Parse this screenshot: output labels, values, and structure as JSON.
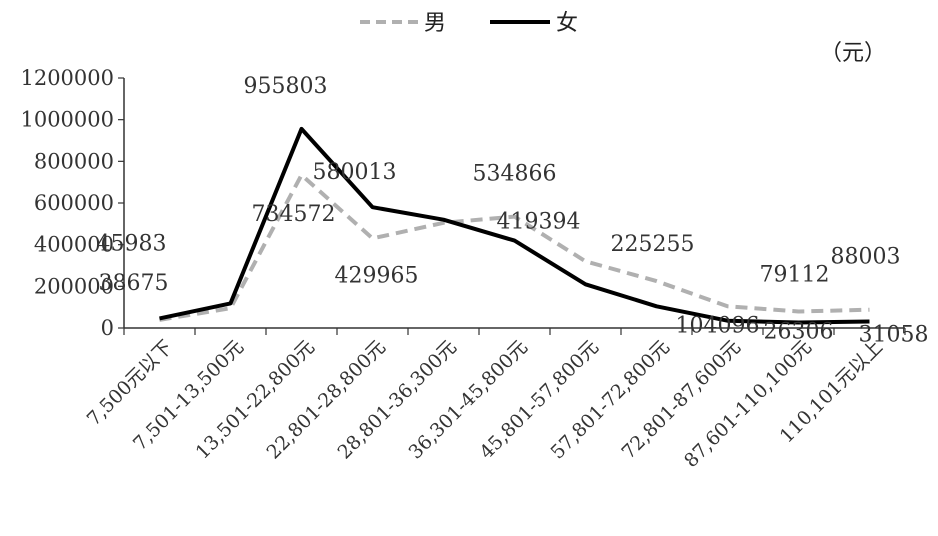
{
  "chart_data": {
    "type": "line",
    "unit": "（元）",
    "categories": [
      "7,500元以下",
      "7,501-13,500元",
      "13,501-22,800元",
      "22,801-28,800元",
      "28,801-36,300元",
      "36,301-45,800元",
      "45,801-57,800元",
      "57,801-72,800元",
      "72,801-87,600元",
      "87,601-110,100元",
      "110,101元以上"
    ],
    "series": [
      {
        "name": "男",
        "style": "dashed",
        "color": "#b0b0b0",
        "values": [
          38675,
          95000,
          734572,
          429965,
          505000,
          534866,
          320000,
          225255,
          104096,
          79112,
          88003
        ],
        "labels": [
          "38675",
          "",
          "734572",
          "429965",
          "",
          "534866",
          "",
          "225255",
          "104096",
          "79112",
          "88003"
        ]
      },
      {
        "name": "女",
        "style": "solid",
        "color": "#000000",
        "values": [
          45983,
          118000,
          955803,
          580013,
          520000,
          419394,
          210000,
          104096,
          35000,
          26306,
          31058
        ],
        "labels": [
          "45983",
          "",
          "955803",
          "580013",
          "",
          "419394",
          "",
          "",
          "",
          "26306",
          "31058"
        ]
      }
    ],
    "yticks": [
      "0",
      "200000",
      "400000",
      "600000",
      "800000",
      "1000000",
      "1200000"
    ],
    "ylim": [
      0,
      1200000
    ],
    "grid": false,
    "legend": "top-center"
  }
}
